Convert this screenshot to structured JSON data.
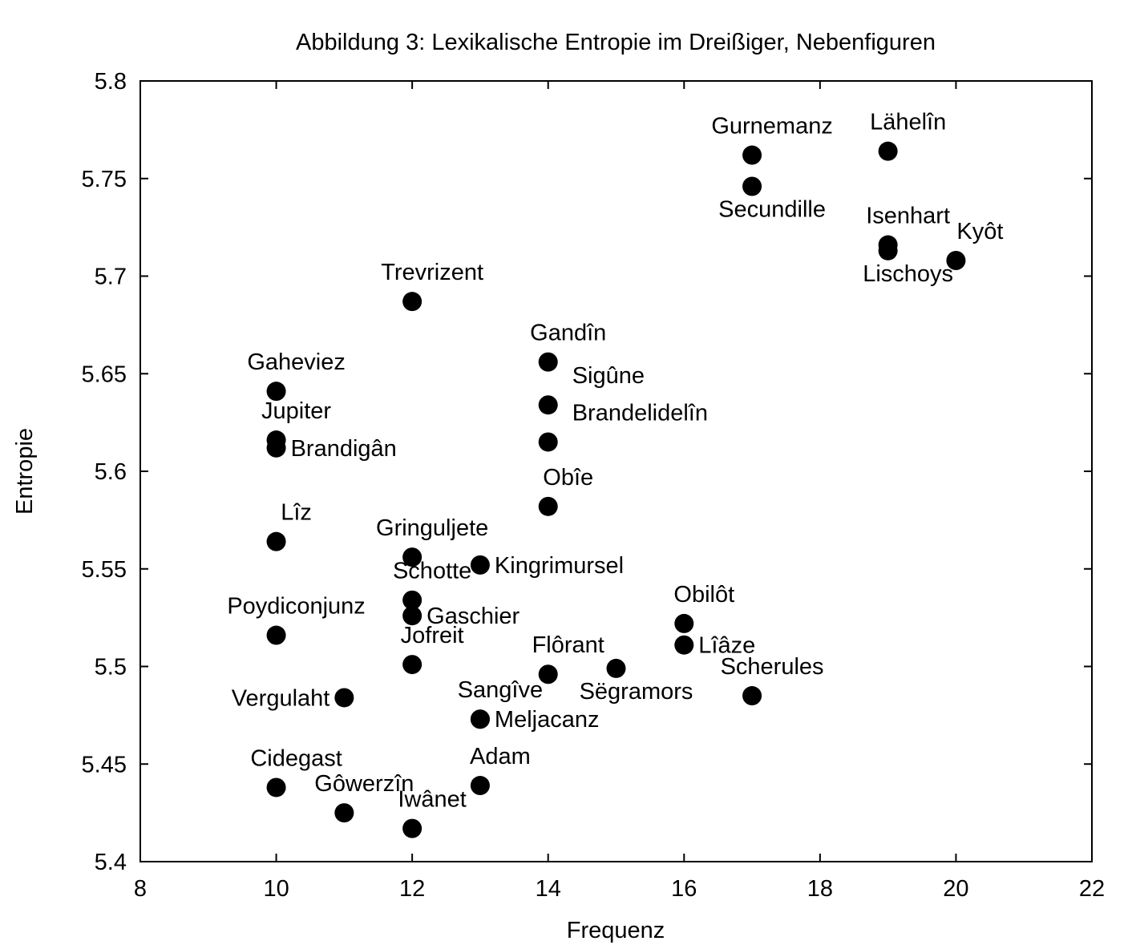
{
  "chart_data": {
    "type": "scatter",
    "title": "Abbildung 3: Lexikalische Entropie im Dreißiger, Nebenfiguren",
    "xlabel": "Frequenz",
    "ylabel": "Entropie",
    "xlim": [
      8,
      22
    ],
    "ylim": [
      5.4,
      5.8
    ],
    "xticks": [
      "8",
      "10",
      "12",
      "14",
      "16",
      "18",
      "20",
      "22"
    ],
    "yticks": [
      "5.4",
      "5.45",
      "5.5",
      "5.55",
      "5.6",
      "5.65",
      "5.7",
      "5.75",
      "5.8"
    ],
    "grid": false,
    "legend": "none",
    "marker_color": "#000000",
    "points": [
      {
        "label": "Gurnemanz",
        "x": 17,
        "y": 5.762,
        "label_pos": "above"
      },
      {
        "label": "Secundille",
        "x": 17,
        "y": 5.746,
        "label_pos": "below"
      },
      {
        "label": "Lähelîn",
        "x": 19,
        "y": 5.764,
        "label_pos": "above"
      },
      {
        "label": "Isenhart",
        "x": 19,
        "y": 5.716,
        "label_pos": "above"
      },
      {
        "label": "Lischoys",
        "x": 19,
        "y": 5.713,
        "label_pos": "below"
      },
      {
        "label": "Kyôt",
        "x": 20,
        "y": 5.708,
        "label_pos": "above-right"
      },
      {
        "label": "Trevrizent",
        "x": 12,
        "y": 5.687,
        "label_pos": "above"
      },
      {
        "label": "Gandîn",
        "x": 14,
        "y": 5.656,
        "label_pos": "above"
      },
      {
        "label": "Sigûne",
        "x": 14,
        "y": 5.634,
        "label_pos": "upper-right"
      },
      {
        "label": "Brandelidelîn",
        "x": 14,
        "y": 5.615,
        "label_pos": "upper-right"
      },
      {
        "label": "Gaheviez",
        "x": 10,
        "y": 5.641,
        "label_pos": "above"
      },
      {
        "label": "Jupiter",
        "x": 10,
        "y": 5.616,
        "label_pos": "above"
      },
      {
        "label": "Brandigân",
        "x": 10,
        "y": 5.612,
        "label_pos": "right"
      },
      {
        "label": "Obîe",
        "x": 14,
        "y": 5.582,
        "label_pos": "above"
      },
      {
        "label": "Lîz",
        "x": 10,
        "y": 5.564,
        "label_pos": "above"
      },
      {
        "label": "Gringuljete",
        "x": 12,
        "y": 5.556,
        "label_pos": "above"
      },
      {
        "label": "Kingrimursel",
        "x": 13,
        "y": 5.552,
        "label_pos": "right"
      },
      {
        "label": "Schotte",
        "x": 12,
        "y": 5.534,
        "label_pos": "above"
      },
      {
        "label": "Gaschier",
        "x": 12,
        "y": 5.526,
        "label_pos": "right"
      },
      {
        "label": "Poydiconjunz",
        "x": 10,
        "y": 5.516,
        "label_pos": "above"
      },
      {
        "label": "Jofreit",
        "x": 12,
        "y": 5.501,
        "label_pos": "above"
      },
      {
        "label": "Obilôt",
        "x": 16,
        "y": 5.522,
        "label_pos": "above"
      },
      {
        "label": "Lîâze",
        "x": 16,
        "y": 5.511,
        "label_pos": "right"
      },
      {
        "label": "Flôrant",
        "x": 14,
        "y": 5.496,
        "label_pos": "above"
      },
      {
        "label": "Sëgramors",
        "x": 15,
        "y": 5.499,
        "label_pos": "below"
      },
      {
        "label": "Scherules",
        "x": 17,
        "y": 5.485,
        "label_pos": "above"
      },
      {
        "label": "Vergulaht",
        "x": 11,
        "y": 5.484,
        "label_pos": "left"
      },
      {
        "label": "Sangîve",
        "x": 13,
        "y": 5.473,
        "label_pos": "above"
      },
      {
        "label": "Meljacanz",
        "x": 13,
        "y": 5.473,
        "label_pos": "right"
      },
      {
        "label": "Adam",
        "x": 13,
        "y": 5.439,
        "label_pos": "above"
      },
      {
        "label": "Cidegast",
        "x": 10,
        "y": 5.438,
        "label_pos": "above"
      },
      {
        "label": "Gôwerzîn",
        "x": 11,
        "y": 5.425,
        "label_pos": "above"
      },
      {
        "label": "Iwânet",
        "x": 12,
        "y": 5.417,
        "label_pos": "above"
      }
    ]
  }
}
